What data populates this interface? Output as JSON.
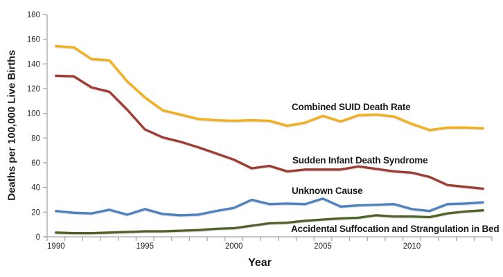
{
  "chart_data": {
    "type": "line",
    "title": "",
    "xlabel": "Year",
    "ylabel": "Deaths per 100,000 Live Births",
    "grid": false,
    "legend": "inline-labels-next-to-lines",
    "ylim": [
      0,
      180
    ],
    "y_ticks": [
      0,
      20,
      40,
      60,
      80,
      100,
      120,
      140,
      160,
      180
    ],
    "x": [
      1990,
      1991,
      1992,
      1993,
      1994,
      1995,
      1996,
      1997,
      1998,
      1999,
      2000,
      2001,
      2002,
      2003,
      2004,
      2005,
      2006,
      2007,
      2008,
      2009,
      2010,
      2011,
      2012,
      2013,
      2014
    ],
    "x_tick_labels": [
      1990,
      1995,
      2000,
      2005,
      2010
    ],
    "axis_color": "#a6a6a6",
    "tick_label_color": "#262626",
    "label_color": "#1a1a1a",
    "series": [
      {
        "name": "Combined SUID Death Rate",
        "color": "#f2b11c",
        "values": [
          154.5,
          153.5,
          144,
          143,
          126,
          113,
          102.5,
          99,
          95.5,
          94.5,
          94,
          94.5,
          94,
          90,
          92.5,
          98,
          93.5,
          98.5,
          99,
          97.5,
          91.5,
          86.5,
          88.5,
          88.5,
          88
        ]
      },
      {
        "name": "Sudden Infant Death Syndrome",
        "color": "#9e3b33",
        "values": [
          130.5,
          130,
          121,
          117.5,
          103,
          87,
          80.5,
          77,
          72.5,
          67.5,
          62.5,
          55.5,
          57.5,
          53,
          54.5,
          54.5,
          54.5,
          57,
          55,
          53,
          52,
          48.5,
          42,
          40.5,
          39
        ]
      },
      {
        "name": "Unknown Cause",
        "color": "#4e81bd",
        "values": [
          21,
          19.5,
          19,
          22,
          18,
          22.5,
          18.5,
          17.5,
          18,
          21,
          23.5,
          30,
          26.5,
          27,
          26.5,
          31,
          24.5,
          25.5,
          26,
          26.5,
          22.5,
          21,
          26.5,
          27,
          28
        ]
      },
      {
        "name": "Accidental Suffocation and Strangulation in Bed",
        "color": "#4f6228",
        "values": [
          3.5,
          3,
          3,
          3.5,
          4,
          4.5,
          4.5,
          5,
          5.5,
          6.5,
          7,
          9,
          11,
          11.5,
          13,
          14,
          15,
          15.5,
          17.5,
          16.5,
          16.5,
          16,
          19,
          20.5,
          21.5
        ]
      }
    ]
  }
}
